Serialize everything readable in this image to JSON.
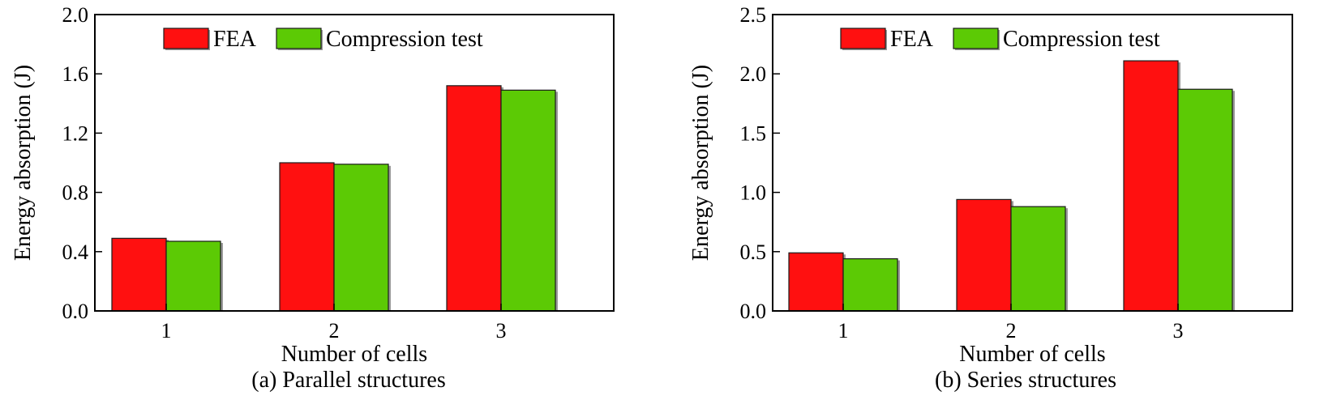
{
  "chart_data": [
    {
      "type": "bar",
      "title": "",
      "caption": "(a) Parallel structures",
      "xlabel": "Number of cells",
      "ylabel": "Energy absorption (J)",
      "categories": [
        "1",
        "2",
        "3"
      ],
      "ylim": [
        0,
        2.0
      ],
      "yticks": [
        "0.0",
        "0.4",
        "0.8",
        "1.2",
        "1.6",
        "2.0"
      ],
      "grid": false,
      "legend_position": "top-center",
      "series": [
        {
          "name": "FEA",
          "color": "#ff1010",
          "values": [
            0.49,
            1.0,
            1.52
          ]
        },
        {
          "name": "Compression test",
          "color": "#5cca05",
          "values": [
            0.47,
            0.99,
            1.49
          ]
        }
      ]
    },
    {
      "type": "bar",
      "title": "",
      "caption": "(b) Series structures",
      "xlabel": "Number of cells",
      "ylabel": "Energy absorption (J)",
      "categories": [
        "1",
        "2",
        "3"
      ],
      "ylim": [
        0,
        2.5
      ],
      "yticks": [
        "0.0",
        "0.5",
        "1.0",
        "1.5",
        "2.0",
        "2.5"
      ],
      "grid": false,
      "legend_position": "top-center",
      "series": [
        {
          "name": "FEA",
          "color": "#ff1010",
          "values": [
            0.49,
            0.94,
            2.11
          ]
        },
        {
          "name": "Compression test",
          "color": "#5cca05",
          "values": [
            0.44,
            0.88,
            1.87
          ]
        }
      ]
    }
  ]
}
